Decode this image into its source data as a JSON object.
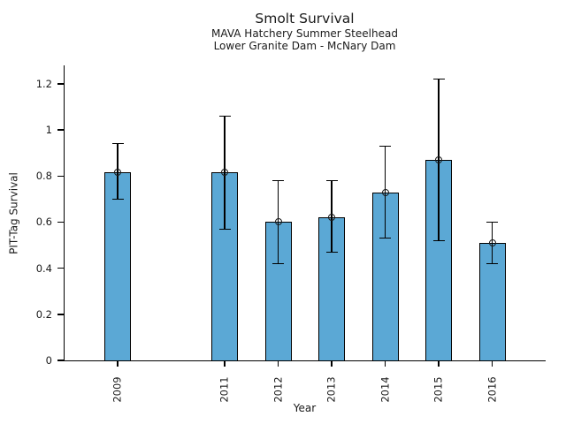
{
  "chart_data": {
    "type": "bar",
    "title": "Smolt Survival",
    "subtitle1": "MAVA Hatchery Summer Steelhead",
    "subtitle2": "Lower Granite Dam - McNary Dam",
    "xlabel": "Year",
    "ylabel": "PIT-Tag Survival",
    "categories": [
      "2009",
      "2011",
      "2012",
      "2013",
      "2014",
      "2015",
      "2016"
    ],
    "x_years": [
      2009,
      2011,
      2012,
      2013,
      2014,
      2015,
      2016
    ],
    "values": [
      0.815,
      0.815,
      0.6,
      0.62,
      0.73,
      0.87,
      0.51
    ],
    "error_low": [
      0.7,
      0.57,
      0.42,
      0.47,
      0.53,
      0.52,
      0.42
    ],
    "error_high": [
      0.94,
      1.06,
      0.78,
      0.78,
      0.93,
      1.22,
      0.6
    ],
    "xlim": [
      2008,
      2017
    ],
    "ylim": [
      0,
      1.28
    ],
    "yticks": [
      0,
      0.2,
      0.4,
      0.6,
      0.8,
      1,
      1.2
    ],
    "ytick_labels": [
      "0",
      "0.2",
      "0.4",
      "0.6",
      "0.8",
      "1",
      "1.2"
    ],
    "grid": false,
    "legend": "none",
    "bar_color": "#5BA8D5",
    "bar_edge_color": "#000000",
    "error_color": "#000000",
    "marker": "open-circle"
  }
}
